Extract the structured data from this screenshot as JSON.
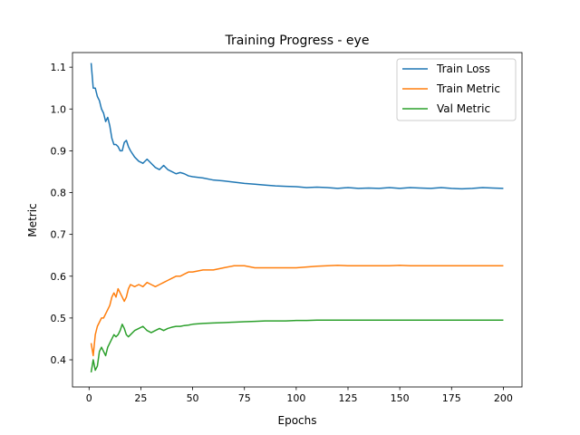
{
  "chart_data": {
    "type": "line",
    "title": "Training Progress - eye",
    "xlabel": "Epochs",
    "ylabel": "Metric",
    "xlim": [
      -8,
      209
    ],
    "ylim": [
      0.335,
      1.135
    ],
    "xticks": [
      0,
      25,
      50,
      75,
      100,
      125,
      150,
      175,
      200
    ],
    "yticks": [
      0.4,
      0.5,
      0.6,
      0.7,
      0.8,
      0.9,
      1.0,
      1.1
    ],
    "ytick_labels": [
      "0.4",
      "0.5",
      "0.6",
      "0.7",
      "0.8",
      "0.9",
      "1.0",
      "1.1"
    ],
    "grid": false,
    "legend_position": "top-right",
    "series": [
      {
        "name": "Train Loss",
        "color": "#1f77b4",
        "points": [
          [
            1,
            1.11
          ],
          [
            2,
            1.05
          ],
          [
            3,
            1.05
          ],
          [
            4,
            1.03
          ],
          [
            5,
            1.02
          ],
          [
            6,
            1.0
          ],
          [
            7,
            0.99
          ],
          [
            8,
            0.97
          ],
          [
            9,
            0.98
          ],
          [
            10,
            0.96
          ],
          [
            11,
            0.93
          ],
          [
            12,
            0.915
          ],
          [
            13,
            0.915
          ],
          [
            14,
            0.91
          ],
          [
            15,
            0.9
          ],
          [
            16,
            0.9
          ],
          [
            17,
            0.92
          ],
          [
            18,
            0.925
          ],
          [
            19,
            0.91
          ],
          [
            20,
            0.9
          ],
          [
            22,
            0.885
          ],
          [
            24,
            0.875
          ],
          [
            26,
            0.87
          ],
          [
            28,
            0.88
          ],
          [
            30,
            0.87
          ],
          [
            32,
            0.86
          ],
          [
            34,
            0.855
          ],
          [
            36,
            0.865
          ],
          [
            38,
            0.855
          ],
          [
            40,
            0.85
          ],
          [
            42,
            0.845
          ],
          [
            44,
            0.848
          ],
          [
            46,
            0.845
          ],
          [
            48,
            0.84
          ],
          [
            50,
            0.838
          ],
          [
            55,
            0.835
          ],
          [
            60,
            0.83
          ],
          [
            65,
            0.828
          ],
          [
            70,
            0.825
          ],
          [
            75,
            0.822
          ],
          [
            80,
            0.82
          ],
          [
            85,
            0.818
          ],
          [
            90,
            0.816
          ],
          [
            95,
            0.815
          ],
          [
            100,
            0.814
          ],
          [
            105,
            0.812
          ],
          [
            110,
            0.813
          ],
          [
            115,
            0.812
          ],
          [
            120,
            0.81
          ],
          [
            125,
            0.812
          ],
          [
            130,
            0.81
          ],
          [
            135,
            0.811
          ],
          [
            140,
            0.81
          ],
          [
            145,
            0.812
          ],
          [
            150,
            0.81
          ],
          [
            155,
            0.812
          ],
          [
            160,
            0.811
          ],
          [
            165,
            0.81
          ],
          [
            170,
            0.812
          ],
          [
            175,
            0.81
          ],
          [
            180,
            0.809
          ],
          [
            185,
            0.81
          ],
          [
            190,
            0.812
          ],
          [
            195,
            0.811
          ],
          [
            200,
            0.81
          ]
        ]
      },
      {
        "name": "Train Metric",
        "color": "#ff7f0e",
        "points": [
          [
            1,
            0.44
          ],
          [
            2,
            0.41
          ],
          [
            3,
            0.46
          ],
          [
            4,
            0.48
          ],
          [
            5,
            0.49
          ],
          [
            6,
            0.5
          ],
          [
            7,
            0.5
          ],
          [
            8,
            0.51
          ],
          [
            9,
            0.52
          ],
          [
            10,
            0.53
          ],
          [
            11,
            0.55
          ],
          [
            12,
            0.56
          ],
          [
            13,
            0.55
          ],
          [
            14,
            0.57
          ],
          [
            15,
            0.56
          ],
          [
            16,
            0.55
          ],
          [
            17,
            0.54
          ],
          [
            18,
            0.55
          ],
          [
            19,
            0.57
          ],
          [
            20,
            0.58
          ],
          [
            22,
            0.575
          ],
          [
            24,
            0.58
          ],
          [
            26,
            0.575
          ],
          [
            28,
            0.585
          ],
          [
            30,
            0.58
          ],
          [
            32,
            0.575
          ],
          [
            34,
            0.58
          ],
          [
            36,
            0.585
          ],
          [
            38,
            0.59
          ],
          [
            40,
            0.595
          ],
          [
            42,
            0.6
          ],
          [
            44,
            0.6
          ],
          [
            46,
            0.605
          ],
          [
            48,
            0.61
          ],
          [
            50,
            0.61
          ],
          [
            55,
            0.615
          ],
          [
            60,
            0.615
          ],
          [
            65,
            0.62
          ],
          [
            70,
            0.625
          ],
          [
            75,
            0.625
          ],
          [
            80,
            0.62
          ],
          [
            85,
            0.62
          ],
          [
            90,
            0.62
          ],
          [
            95,
            0.62
          ],
          [
            100,
            0.62
          ],
          [
            105,
            0.622
          ],
          [
            110,
            0.624
          ],
          [
            115,
            0.625
          ],
          [
            120,
            0.626
          ],
          [
            125,
            0.625
          ],
          [
            130,
            0.625
          ],
          [
            135,
            0.625
          ],
          [
            140,
            0.625
          ],
          [
            145,
            0.625
          ],
          [
            150,
            0.626
          ],
          [
            155,
            0.625
          ],
          [
            160,
            0.625
          ],
          [
            165,
            0.625
          ],
          [
            170,
            0.625
          ],
          [
            175,
            0.625
          ],
          [
            180,
            0.625
          ],
          [
            185,
            0.625
          ],
          [
            190,
            0.625
          ],
          [
            195,
            0.625
          ],
          [
            200,
            0.625
          ]
        ]
      },
      {
        "name": "Val Metric",
        "color": "#2ca02c",
        "points": [
          [
            1,
            0.37
          ],
          [
            2,
            0.4
          ],
          [
            3,
            0.375
          ],
          [
            4,
            0.385
          ],
          [
            5,
            0.42
          ],
          [
            6,
            0.43
          ],
          [
            7,
            0.42
          ],
          [
            8,
            0.41
          ],
          [
            9,
            0.43
          ],
          [
            10,
            0.44
          ],
          [
            11,
            0.45
          ],
          [
            12,
            0.46
          ],
          [
            13,
            0.455
          ],
          [
            14,
            0.46
          ],
          [
            15,
            0.47
          ],
          [
            16,
            0.485
          ],
          [
            17,
            0.475
          ],
          [
            18,
            0.46
          ],
          [
            19,
            0.455
          ],
          [
            20,
            0.46
          ],
          [
            22,
            0.47
          ],
          [
            24,
            0.475
          ],
          [
            26,
            0.48
          ],
          [
            28,
            0.47
          ],
          [
            30,
            0.465
          ],
          [
            32,
            0.47
          ],
          [
            34,
            0.475
          ],
          [
            36,
            0.47
          ],
          [
            38,
            0.475
          ],
          [
            40,
            0.478
          ],
          [
            42,
            0.48
          ],
          [
            44,
            0.48
          ],
          [
            46,
            0.482
          ],
          [
            48,
            0.483
          ],
          [
            50,
            0.485
          ],
          [
            55,
            0.487
          ],
          [
            60,
            0.488
          ],
          [
            65,
            0.489
          ],
          [
            70,
            0.49
          ],
          [
            75,
            0.491
          ],
          [
            80,
            0.492
          ],
          [
            85,
            0.493
          ],
          [
            90,
            0.493
          ],
          [
            95,
            0.493
          ],
          [
            100,
            0.494
          ],
          [
            105,
            0.494
          ],
          [
            110,
            0.495
          ],
          [
            115,
            0.495
          ],
          [
            120,
            0.495
          ],
          [
            125,
            0.495
          ],
          [
            130,
            0.495
          ],
          [
            135,
            0.495
          ],
          [
            140,
            0.495
          ],
          [
            145,
            0.495
          ],
          [
            150,
            0.495
          ],
          [
            155,
            0.495
          ],
          [
            160,
            0.495
          ],
          [
            165,
            0.495
          ],
          [
            170,
            0.495
          ],
          [
            175,
            0.495
          ],
          [
            180,
            0.495
          ],
          [
            185,
            0.495
          ],
          [
            190,
            0.495
          ],
          [
            195,
            0.495
          ],
          [
            200,
            0.495
          ]
        ]
      }
    ]
  }
}
